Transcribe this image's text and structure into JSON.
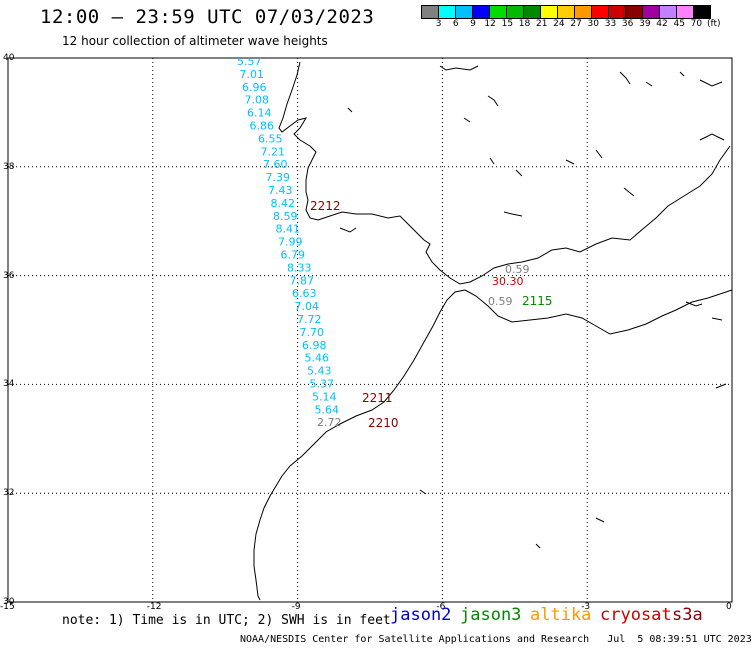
{
  "header": {
    "title": "12:00 — 23:59 UTC 07/03/2023",
    "subtitle": "12 hour collection of altimeter wave heights"
  },
  "legend": {
    "colors": [
      "#808080",
      "#00ffff",
      "#00bfff",
      "#0000ff",
      "#00dd00",
      "#00bb00",
      "#008800",
      "#ffff00",
      "#ffcc00",
      "#ff9900",
      "#ff0000",
      "#cc0000",
      "#880000",
      "#a000a0",
      "#c080ff",
      "#ff80ff",
      "#000000"
    ],
    "labels": [
      "3",
      "6",
      "9",
      "12",
      "15",
      "18",
      "21",
      "24",
      "27",
      "30",
      "33",
      "36",
      "39",
      "42",
      "45",
      "70"
    ],
    "unit": "(ft)"
  },
  "axes": {
    "lat_labels": [
      "40",
      "38",
      "36",
      "34",
      "32",
      "30"
    ],
    "lon_labels": [
      "-15",
      "-12",
      "-9",
      "-6",
      "-3",
      "0"
    ]
  },
  "track_values": [
    {
      "text": "5.57",
      "color": "#00bfff"
    },
    {
      "text": "7.01",
      "color": "#00bfff"
    },
    {
      "text": "6.96",
      "color": "#00bfff"
    },
    {
      "text": "7.08",
      "color": "#00bfff"
    },
    {
      "text": "6.14",
      "color": "#00bfff"
    },
    {
      "text": "6.86",
      "color": "#00bfff"
    },
    {
      "text": "6.55",
      "color": "#00bfff"
    },
    {
      "text": "7.21",
      "color": "#00bfff"
    },
    {
      "text": "7.60",
      "color": "#00bfff"
    },
    {
      "text": "7.39",
      "color": "#00bfff"
    },
    {
      "text": "7.43",
      "color": "#00bfff"
    },
    {
      "text": "8.42",
      "color": "#00bfff"
    },
    {
      "text": "8.59",
      "color": "#00bfff"
    },
    {
      "text": "8.41",
      "color": "#00bfff"
    },
    {
      "text": "7.99",
      "color": "#00bfff"
    },
    {
      "text": "6.79",
      "color": "#00bfff"
    },
    {
      "text": "8.33",
      "color": "#00bfff"
    },
    {
      "text": "7.87",
      "color": "#00bfff"
    },
    {
      "text": "6.63",
      "color": "#00bfff"
    },
    {
      "text": "7.04",
      "color": "#00bfff"
    },
    {
      "text": "7.72",
      "color": "#00bfff"
    },
    {
      "text": "7.70",
      "color": "#00bfff"
    },
    {
      "text": "6.98",
      "color": "#00bfff"
    },
    {
      "text": "5.46",
      "color": "#00bfff"
    },
    {
      "text": "5.43",
      "color": "#00bfff"
    },
    {
      "text": "5.37",
      "color": "#00bfff"
    },
    {
      "text": "5.14",
      "color": "#00bfff"
    },
    {
      "text": "5.64",
      "color": "#00bfff"
    },
    {
      "text": "2.72",
      "color": "#808080"
    }
  ],
  "time_labels": [
    {
      "text": "2212",
      "color": "#880000"
    },
    {
      "text": "2211",
      "color": "#880000"
    },
    {
      "text": "2210",
      "color": "#880000"
    },
    {
      "text": "2115",
      "color": "#008800"
    }
  ],
  "other_values": [
    {
      "text": "0.59",
      "color": "#808080"
    },
    {
      "text": "30.30",
      "color": "#cc0000"
    },
    {
      "text": "0.59",
      "color": "#808080"
    }
  ],
  "footer": {
    "note": "note: 1) Time is in UTC; 2) SWH is in feet",
    "satellites": [
      {
        "name": "jason2",
        "color": "#0000cc"
      },
      {
        "name": "jason3",
        "color": "#008800"
      },
      {
        "name": "altika",
        "color": "#ff9900"
      },
      {
        "name": "cryosat",
        "color": "#cc0000"
      },
      {
        "name": "s3a",
        "color": "#880000"
      }
    ],
    "credit": "NOAA/NESDIS Center for Satellite Applications and Research   Jul  5 08:39:51 UTC 2023"
  }
}
